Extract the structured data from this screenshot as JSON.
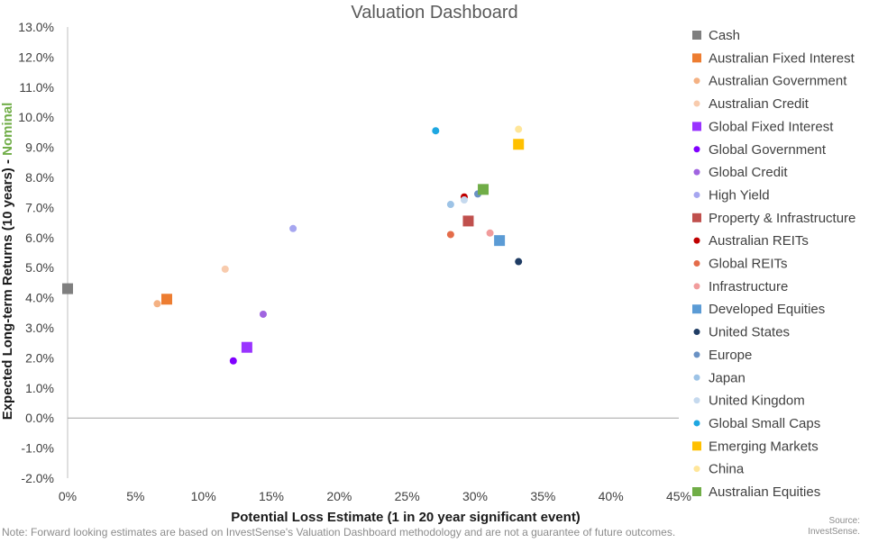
{
  "chart_data": {
    "type": "scatter",
    "title": "Valuation Dashboard",
    "xlabel": "Potential Loss Estimate (1 in 20 year significant event)",
    "ylabel_main": "Expected Long-term Returns (10 years) - ",
    "ylabel_highlight": "Nominal",
    "ylabel_highlight_color": "#70ad47",
    "xlim": [
      0,
      45
    ],
    "ylim": [
      -2,
      13
    ],
    "x_ticks": [
      0,
      5,
      10,
      15,
      20,
      25,
      30,
      35,
      40,
      45
    ],
    "y_ticks": [
      -2,
      -1,
      0,
      1,
      2,
      3,
      4,
      5,
      6,
      7,
      8,
      9,
      10,
      11,
      12,
      13
    ],
    "x_tick_labels": [
      "0%",
      "5%",
      "10%",
      "15%",
      "20%",
      "25%",
      "30%",
      "35%",
      "40%",
      "45%"
    ],
    "y_tick_labels": [
      "-2.0%",
      "-1.0%",
      "0.0%",
      "1.0%",
      "2.0%",
      "3.0%",
      "4.0%",
      "5.0%",
      "6.0%",
      "7.0%",
      "8.0%",
      "9.0%",
      "10.0%",
      "11.0%",
      "12.0%",
      "13.0%"
    ],
    "series": [
      {
        "name": "Cash",
        "marker": "square",
        "color": "#7f7f7f",
        "x": 0.0,
        "y": 4.3
      },
      {
        "name": "Australian Fixed Interest",
        "marker": "square",
        "color": "#ed7d31",
        "x": 7.3,
        "y": 3.95
      },
      {
        "name": "Australian Government",
        "marker": "circle",
        "color": "#f4b183",
        "x": 6.6,
        "y": 3.8
      },
      {
        "name": "Australian Credit",
        "marker": "circle",
        "color": "#f8cbad",
        "x": 11.6,
        "y": 4.95
      },
      {
        "name": "Global Fixed Interest",
        "marker": "square",
        "color": "#9933ff",
        "x": 13.2,
        "y": 2.35
      },
      {
        "name": "Global Government",
        "marker": "circle",
        "color": "#8000ff",
        "x": 12.2,
        "y": 1.9
      },
      {
        "name": "Global Credit",
        "marker": "circle",
        "color": "#a064e0",
        "x": 14.4,
        "y": 3.45
      },
      {
        "name": "High Yield",
        "marker": "circle",
        "color": "#a6a6f0",
        "x": 16.6,
        "y": 6.3
      },
      {
        "name": "Property & Infrastructure",
        "marker": "square",
        "color": "#c0504d",
        "x": 29.5,
        "y": 6.55
      },
      {
        "name": "Australian REITs",
        "marker": "circle",
        "color": "#c00000",
        "x": 29.2,
        "y": 7.35
      },
      {
        "name": "Global REITs",
        "marker": "circle",
        "color": "#e46c4a",
        "x": 28.2,
        "y": 6.1
      },
      {
        "name": "Infrastructure",
        "marker": "circle",
        "color": "#f19c9c",
        "x": 31.1,
        "y": 6.15
      },
      {
        "name": "Developed Equities",
        "marker": "square",
        "color": "#5b9bd5",
        "x": 31.8,
        "y": 5.9
      },
      {
        "name": "United States",
        "marker": "circle",
        "color": "#1f3c64",
        "x": 33.2,
        "y": 5.2
      },
      {
        "name": "Europe",
        "marker": "circle",
        "color": "#6a92c4",
        "x": 30.2,
        "y": 7.45
      },
      {
        "name": "Japan",
        "marker": "circle",
        "color": "#9dc3e6",
        "x": 28.2,
        "y": 7.1
      },
      {
        "name": "United Kingdom",
        "marker": "circle",
        "color": "#c5d9ee",
        "x": 29.2,
        "y": 7.25
      },
      {
        "name": "Global Small Caps",
        "marker": "circle",
        "color": "#1ea7e1",
        "x": 27.1,
        "y": 9.55
      },
      {
        "name": "Emerging Markets",
        "marker": "square",
        "color": "#ffc000",
        "x": 33.2,
        "y": 9.1
      },
      {
        "name": "China",
        "marker": "circle",
        "color": "#ffe699",
        "x": 33.2,
        "y": 9.6
      },
      {
        "name": "Australian Equities",
        "marker": "square",
        "color": "#70ad47",
        "x": 30.6,
        "y": 7.6
      }
    ]
  },
  "footer": {
    "note": "Note: Forward looking estimates are based on InvestSense's Valuation Dashboard methodology and are not a guarantee of future outcomes.",
    "source_line1": "Source:",
    "source_line2": "InvestSense."
  }
}
